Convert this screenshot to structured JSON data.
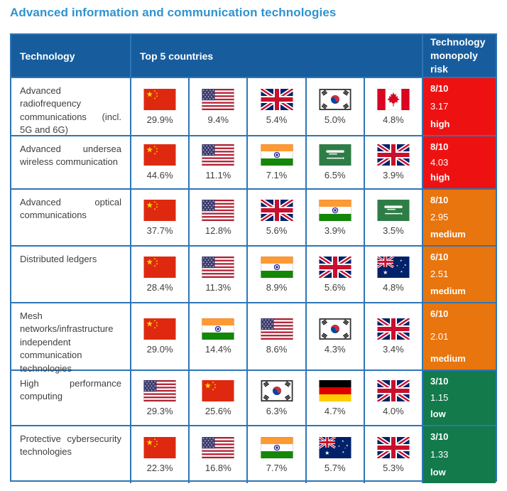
{
  "title": "Advanced information and communication technologies",
  "header": {
    "technology": "Technology",
    "top5": "Top 5 countries",
    "risk": "Technology monopoly risk"
  },
  "colors": {
    "title": "#2e93cf",
    "header_bg": "#175d9d",
    "border": "#2e75b6",
    "risk_high": "#ee1111",
    "risk_medium": "#e8750e",
    "risk_low": "#137a4b",
    "body_text": "#3f3f3f"
  },
  "chart_data": {
    "type": "table",
    "title": "Advanced information and communication technologies",
    "columns": [
      "Technology",
      "Top 5 countries",
      "Technology monopoly risk"
    ],
    "rows": [
      {
        "technology": "Advanced radiofrequency communications (incl. 5G and 6G)",
        "countries": [
          {
            "country": "China",
            "flag": "china",
            "share": "29.9%"
          },
          {
            "country": "United States",
            "flag": "usa",
            "share": "9.4%"
          },
          {
            "country": "United Kingdom",
            "flag": "uk",
            "share": "5.4%"
          },
          {
            "country": "South Korea",
            "flag": "south-korea",
            "share": "5.0%"
          },
          {
            "country": "Canada",
            "flag": "canada",
            "share": "4.8%"
          }
        ],
        "risk": {
          "score": "8/10",
          "value": "3.17",
          "level": "high"
        }
      },
      {
        "technology": "Advanced undersea wireless communication",
        "countries": [
          {
            "country": "China",
            "flag": "china",
            "share": "44.6%"
          },
          {
            "country": "United States",
            "flag": "usa",
            "share": "11.1%"
          },
          {
            "country": "India",
            "flag": "india",
            "share": "7.1%"
          },
          {
            "country": "Saudi Arabia",
            "flag": "saudi-arabia",
            "share": "6.5%"
          },
          {
            "country": "United Kingdom",
            "flag": "uk",
            "share": "3.9%"
          }
        ],
        "risk": {
          "score": "8/10",
          "value": "4.03",
          "level": "high"
        }
      },
      {
        "technology": "Advanced optical communications",
        "countries": [
          {
            "country": "China",
            "flag": "china",
            "share": "37.7%"
          },
          {
            "country": "United States",
            "flag": "usa",
            "share": "12.8%"
          },
          {
            "country": "United Kingdom",
            "flag": "uk",
            "share": "5.6%"
          },
          {
            "country": "India",
            "flag": "india",
            "share": "3.9%"
          },
          {
            "country": "Saudi Arabia",
            "flag": "saudi-arabia",
            "share": "3.5%"
          }
        ],
        "risk": {
          "score": "8/10",
          "value": "2.95",
          "level": "medium"
        }
      },
      {
        "technology": "Distributed ledgers",
        "countries": [
          {
            "country": "China",
            "flag": "china",
            "share": "28.4%"
          },
          {
            "country": "United States",
            "flag": "usa",
            "share": "11.3%"
          },
          {
            "country": "India",
            "flag": "india",
            "share": "8.9%"
          },
          {
            "country": "United Kingdom",
            "flag": "uk",
            "share": "5.6%"
          },
          {
            "country": "Australia",
            "flag": "australia",
            "share": "4.8%"
          }
        ],
        "risk": {
          "score": "6/10",
          "value": "2.51",
          "level": "medium"
        }
      },
      {
        "technology": "Mesh networks/infrastructure independent communication technologies",
        "countries": [
          {
            "country": "China",
            "flag": "china",
            "share": "29.0%"
          },
          {
            "country": "India",
            "flag": "india",
            "share": "14.4%"
          },
          {
            "country": "United States",
            "flag": "usa",
            "share": "8.6%"
          },
          {
            "country": "South Korea",
            "flag": "south-korea",
            "share": "4.3%"
          },
          {
            "country": "United Kingdom",
            "flag": "uk",
            "share": "3.4%"
          }
        ],
        "risk": {
          "score": "6/10",
          "value": "2.01",
          "level": "medium"
        }
      },
      {
        "technology": "High performance computing",
        "countries": [
          {
            "country": "United States",
            "flag": "usa",
            "share": "29.3%"
          },
          {
            "country": "China",
            "flag": "china",
            "share": "25.6%"
          },
          {
            "country": "South Korea",
            "flag": "south-korea",
            "share": "6.3%"
          },
          {
            "country": "Germany",
            "flag": "germany",
            "share": "4.7%"
          },
          {
            "country": "United Kingdom",
            "flag": "uk",
            "share": "4.0%"
          }
        ],
        "risk": {
          "score": "3/10",
          "value": "1.15",
          "level": "low"
        }
      },
      {
        "technology": "Protective cybersecurity technologies",
        "countries": [
          {
            "country": "China",
            "flag": "china",
            "share": "22.3%"
          },
          {
            "country": "United States",
            "flag": "usa",
            "share": "16.8%"
          },
          {
            "country": "India",
            "flag": "india",
            "share": "7.7%"
          },
          {
            "country": "Australia",
            "flag": "australia",
            "share": "5.7%"
          },
          {
            "country": "United Kingdom",
            "flag": "uk",
            "share": "5.3%"
          }
        ],
        "risk": {
          "score": "3/10",
          "value": "1.33",
          "level": "low"
        }
      }
    ]
  }
}
